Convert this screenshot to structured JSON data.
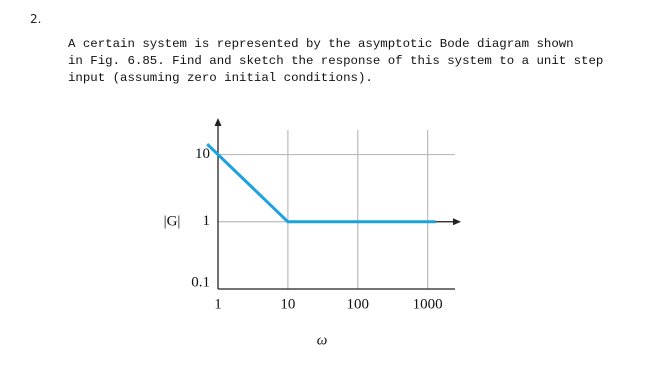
{
  "problem_number": "2.",
  "text_lines": [
    "A certain system is represented by the asymptotic Bode diagram shown",
    "in Fig. 6.85. Find and sketch the response of this system to a unit step",
    "input (assuming zero initial conditions)."
  ],
  "chart_data": {
    "type": "line",
    "y_label": "|G|",
    "x_label": "ω",
    "log_x": true,
    "log_y": true,
    "grid": true,
    "xlim": [
      1,
      3000
    ],
    "ylim": [
      0.1,
      35
    ],
    "xticks": [
      1,
      10,
      100,
      1000
    ],
    "yticks": [
      0.1,
      1,
      10
    ],
    "series": [
      {
        "color": "#1aa3e0",
        "x": [
          0.7,
          10,
          1300
        ],
        "values": [
          14.3,
          1,
          1
        ]
      }
    ]
  }
}
